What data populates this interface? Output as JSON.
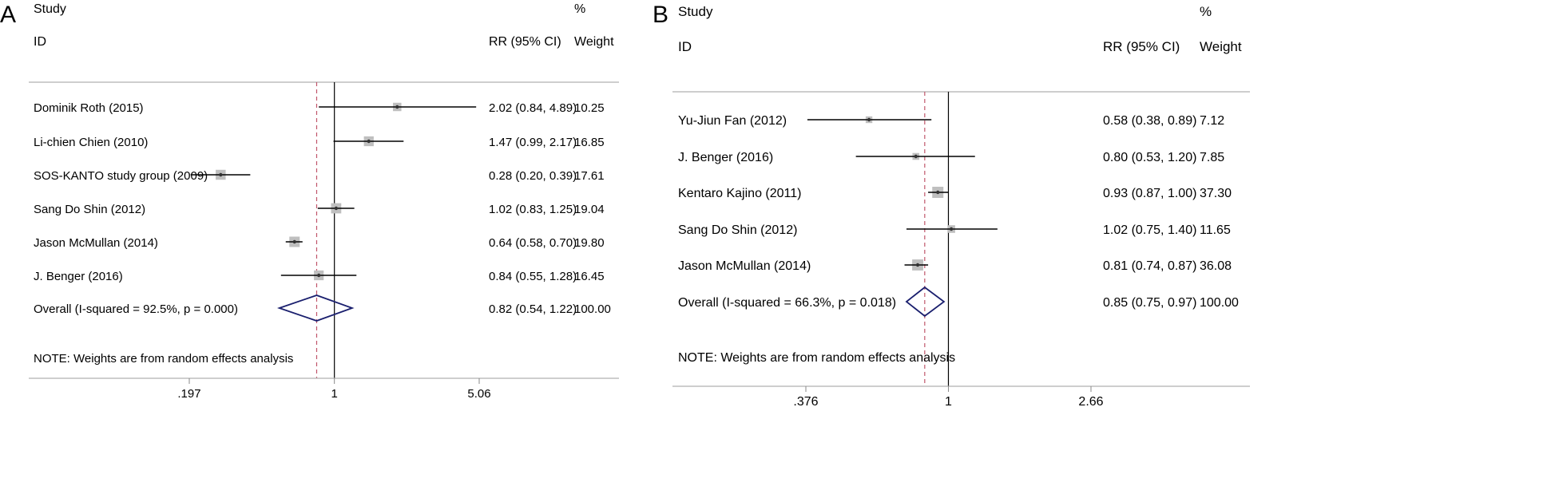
{
  "chart_data": [
    {
      "type": "forest",
      "panel_label": "A",
      "header": {
        "study": "Study",
        "id": "ID",
        "rr": "RR (95% CI)",
        "pct": "%",
        "weight": "Weight"
      },
      "studies": [
        {
          "name": "Dominik Roth (2015)",
          "rr": 2.02,
          "lo": 0.84,
          "hi": 4.89,
          "weight": 10.25,
          "ci_text": "2.02 (0.84, 4.89)",
          "weight_text": "10.25"
        },
        {
          "name": "Li-chien Chien (2010)",
          "rr": 1.47,
          "lo": 0.99,
          "hi": 2.17,
          "weight": 16.85,
          "ci_text": "1.47 (0.99, 2.17)",
          "weight_text": "16.85"
        },
        {
          "name": "SOS-KANTO study group (2009)",
          "rr": 0.28,
          "lo": 0.2,
          "hi": 0.39,
          "weight": 17.61,
          "ci_text": "0.28 (0.20, 0.39)",
          "weight_text": "17.61"
        },
        {
          "name": "Sang Do Shin (2012)",
          "rr": 1.02,
          "lo": 0.83,
          "hi": 1.25,
          "weight": 19.04,
          "ci_text": "1.02 (0.83, 1.25)",
          "weight_text": "19.04"
        },
        {
          "name": "Jason  McMullan (2014)",
          "rr": 0.64,
          "lo": 0.58,
          "hi": 0.7,
          "weight": 19.8,
          "ci_text": "0.64 (0.58, 0.70)",
          "weight_text": "19.80"
        },
        {
          "name": "J. Benger (2016)",
          "rr": 0.84,
          "lo": 0.55,
          "hi": 1.28,
          "weight": 16.45,
          "ci_text": "0.84 (0.55, 1.28)",
          "weight_text": "16.45"
        }
      ],
      "overall": {
        "label": "Overall  (I-squared = 92.5%, p = 0.000)",
        "rr": 0.82,
        "lo": 0.54,
        "hi": 1.22,
        "ci_text": "0.82 (0.54, 1.22)",
        "weight_text": "100.00"
      },
      "note": "NOTE: Weights are from random effects analysis",
      "x_scale": "log",
      "xlim": [
        0.197,
        5.06
      ],
      "x_ticks": [
        {
          "value": 0.197,
          "label": ".197"
        },
        {
          "value": 1,
          "label": "1"
        },
        {
          "value": 5.06,
          "label": "5.06"
        }
      ],
      "colors": {
        "diamond": "#1a1f6e",
        "overall_line": "#c0556a",
        "box": "#bfbfbf",
        "rule": "#b0b0b0"
      }
    },
    {
      "type": "forest",
      "panel_label": "B",
      "header": {
        "study": "Study",
        "id": "ID",
        "rr": "RR (95% CI)",
        "pct": "%",
        "weight": "Weight"
      },
      "studies": [
        {
          "name": "Yu-Jiun Fan (2012)",
          "rr": 0.58,
          "lo": 0.38,
          "hi": 0.89,
          "weight": 7.12,
          "ci_text": "0.58 (0.38, 0.89)",
          "weight_text": "7.12"
        },
        {
          "name": "J. Benger (2016)",
          "rr": 0.8,
          "lo": 0.53,
          "hi": 1.2,
          "weight": 7.85,
          "ci_text": "0.80 (0.53, 1.20)",
          "weight_text": "7.85"
        },
        {
          "name": "Kentaro Kajino (2011)",
          "rr": 0.93,
          "lo": 0.87,
          "hi": 1.0,
          "weight": 37.3,
          "ci_text": "0.93 (0.87, 1.00)",
          "weight_text": "37.30"
        },
        {
          "name": "Sang Do Shin (2012)",
          "rr": 1.02,
          "lo": 0.75,
          "hi": 1.4,
          "weight": 11.65,
          "ci_text": "1.02 (0.75, 1.40)",
          "weight_text": "11.65"
        },
        {
          "name": "Jason  McMullan (2014)",
          "rr": 0.81,
          "lo": 0.74,
          "hi": 0.87,
          "weight": 36.08,
          "ci_text": "0.81 (0.74, 0.87)",
          "weight_text": "36.08"
        }
      ],
      "overall": {
        "label": "Overall  (I-squared = 66.3%, p = 0.018)",
        "rr": 0.85,
        "lo": 0.75,
        "hi": 0.97,
        "ci_text": "0.85 (0.75, 0.97)",
        "weight_text": "100.00"
      },
      "note": "NOTE: Weights are from random effects analysis",
      "x_scale": "log",
      "xlim": [
        0.376,
        2.66
      ],
      "x_ticks": [
        {
          "value": 0.376,
          "label": ".376"
        },
        {
          "value": 1,
          "label": "1"
        },
        {
          "value": 2.66,
          "label": "2.66"
        }
      ],
      "colors": {
        "diamond": "#1a1f6e",
        "overall_line": "#c0556a",
        "box": "#bfbfbf",
        "rule": "#b0b0b0"
      }
    }
  ]
}
